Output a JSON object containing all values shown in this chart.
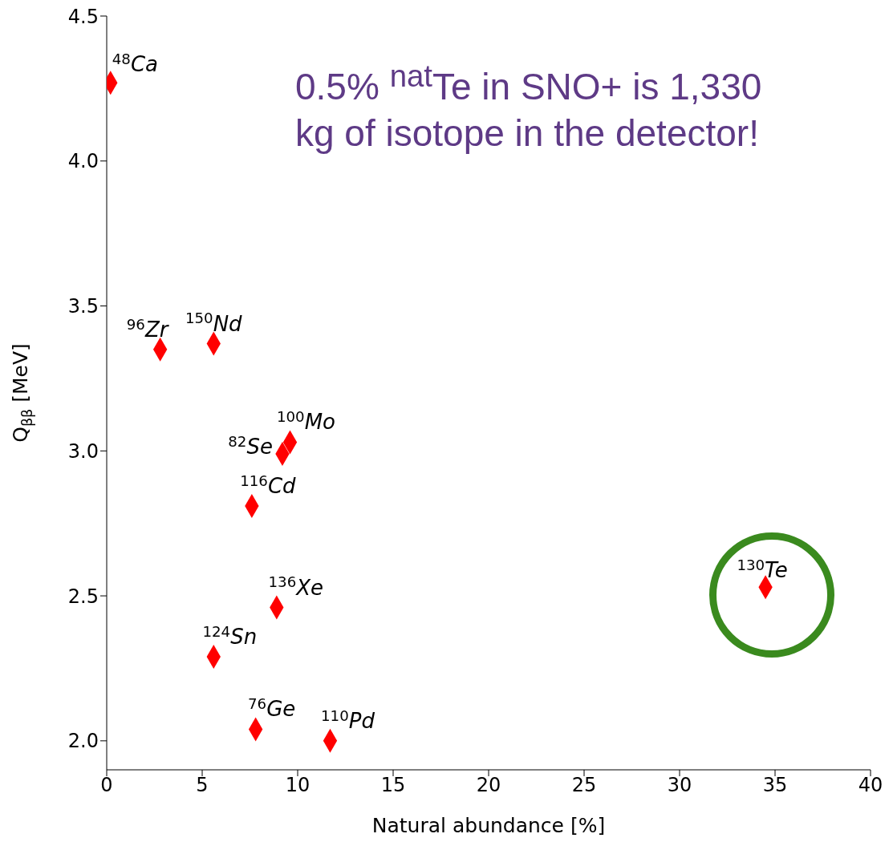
{
  "chart_data": {
    "type": "scatter",
    "xlabel": "Natural abundance [%]",
    "ylabel": "Q$_{ββ}$ [MeV]",
    "x": [
      0.2,
      2.8,
      5.6,
      9.6,
      9.2,
      7.6,
      8.9,
      5.6,
      7.8,
      11.7,
      34.5
    ],
    "series": [
      {
        "color": "#ff0000",
        "values": [
          4.27,
          3.35,
          3.37,
          3.03,
          2.99,
          2.81,
          2.46,
          2.29,
          2.04,
          2.0,
          2.53
        ]
      }
    ],
    "marker": "diamond",
    "grid": false,
    "legend": false,
    "xlim": [
      0,
      40
    ],
    "xticks": [
      0,
      5,
      10,
      15,
      20,
      25,
      30,
      35,
      40
    ],
    "ylim": [
      1.9,
      4.5
    ],
    "yticks": [
      {
        "value": 2,
        "label": "2.0"
      },
      {
        "value": 2.5,
        "label": "2.5"
      },
      {
        "value": 3,
        "label": "3.0"
      },
      {
        "value": 3.5,
        "label": "3.5"
      },
      {
        "value": 4,
        "label": "4.0"
      },
      {
        "value": 4.5,
        "label": "4.5"
      }
    ],
    "annotations": [
      {
        "text": "$^{48}$Ca",
        "x": 0.2,
        "y": 4.27
      },
      {
        "text": "$^{96}$Zr",
        "x": 2.8,
        "y": 3.35
      },
      {
        "text": "$^{150}$Nd",
        "x": 5.6,
        "y": 3.37
      },
      {
        "text": "$^{100}$Mo",
        "x": 9.6,
        "y": 3.03
      },
      {
        "text": "$^{82}$Se",
        "x": 9.2,
        "y": 2.99
      },
      {
        "text": "$^{116}$Cd",
        "x": 7.6,
        "y": 2.81
      },
      {
        "text": "$^{136}$Xe",
        "x": 8.9,
        "y": 2.46
      },
      {
        "text": "$^{124}$Sn",
        "x": 5.6,
        "y": 2.29
      },
      {
        "text": "$^{76}$Ge",
        "x": 7.8,
        "y": 2.04
      },
      {
        "text": "$^{110}$Pd",
        "x": 11.7,
        "y": 2.0
      },
      {
        "text": "$^{130}$Te",
        "x": 34.5,
        "y": 2.53
      },
      "0.5% $^{nat}$Te in SNO+ is 1,330 kg of isotope in the detector!"
    ]
  }
}
